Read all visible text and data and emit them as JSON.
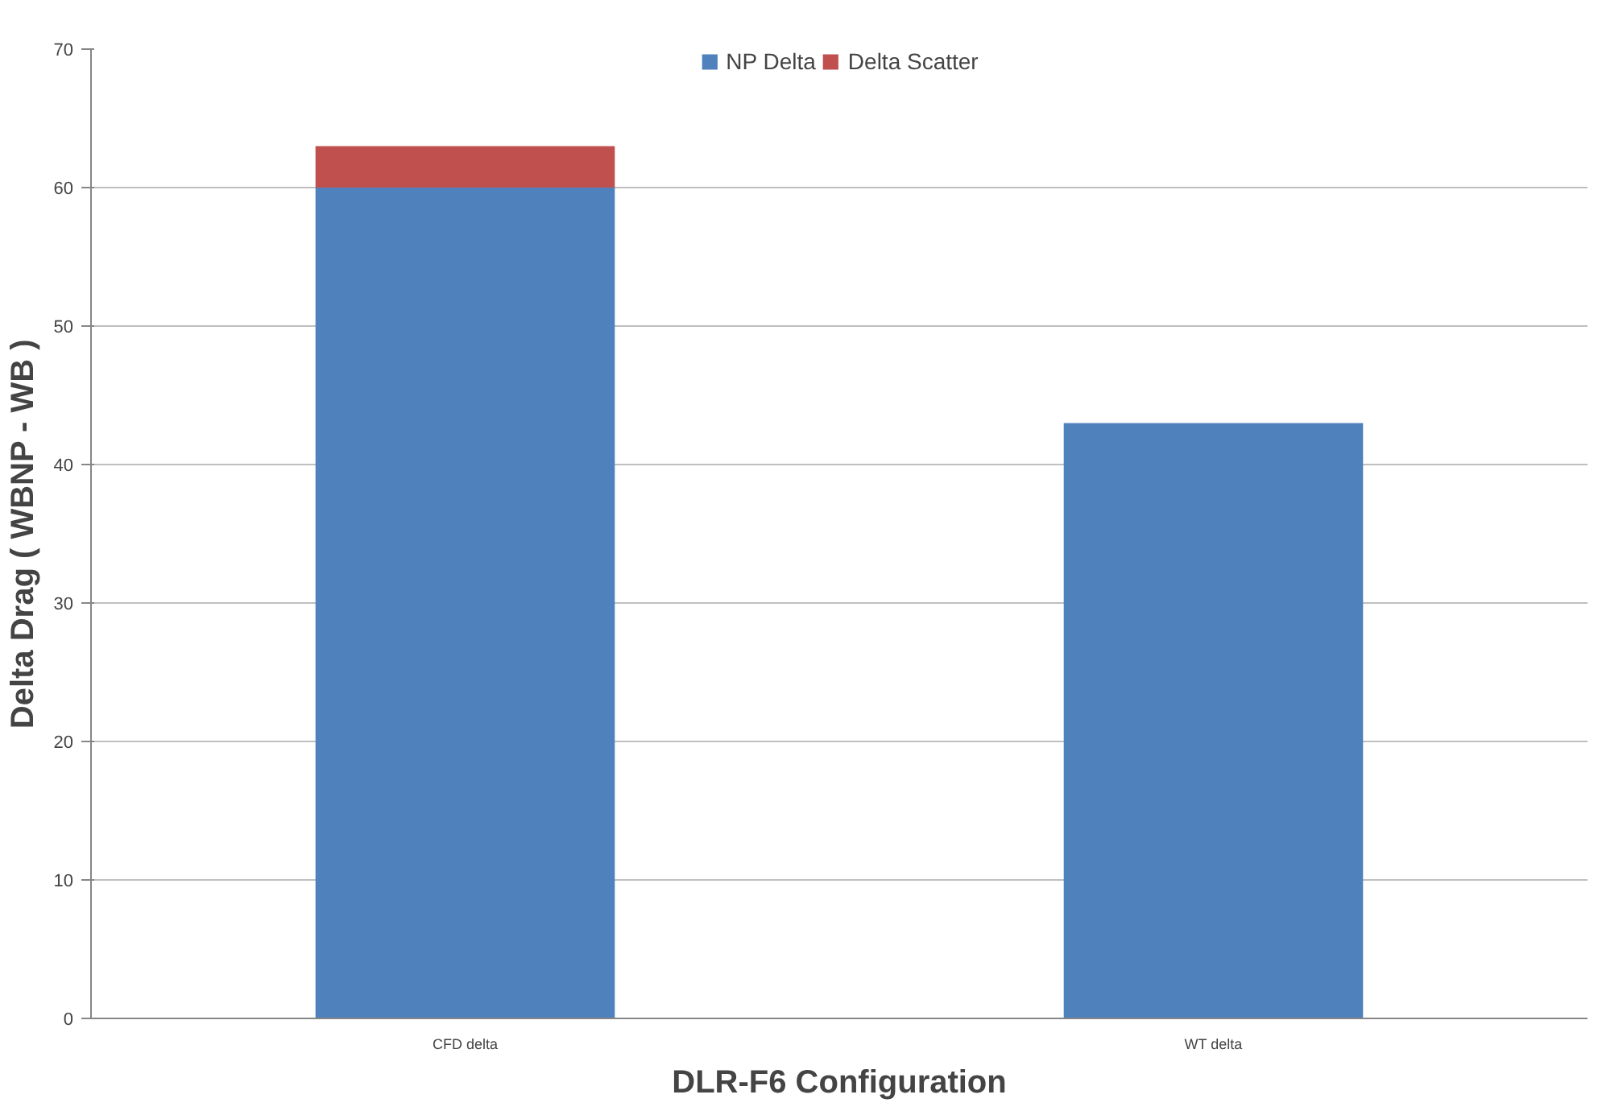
{
  "chart_data": {
    "type": "bar",
    "stacked": true,
    "xlabel": "DLR-F6 Configuration",
    "ylabel": "Delta Drag ( WBNP - WB )",
    "categories": [
      "CFD delta",
      "WT delta"
    ],
    "series": [
      {
        "name": "NP Delta",
        "color": "#4f81bd",
        "values": [
          60,
          43
        ]
      },
      {
        "name": "Delta Scatter",
        "color": "#c0504d",
        "values": [
          3,
          null
        ]
      }
    ],
    "ylim": [
      0,
      70
    ],
    "yticks": [
      0,
      10,
      20,
      30,
      40,
      50,
      60,
      70
    ],
    "grid": "y",
    "legend": "top"
  }
}
